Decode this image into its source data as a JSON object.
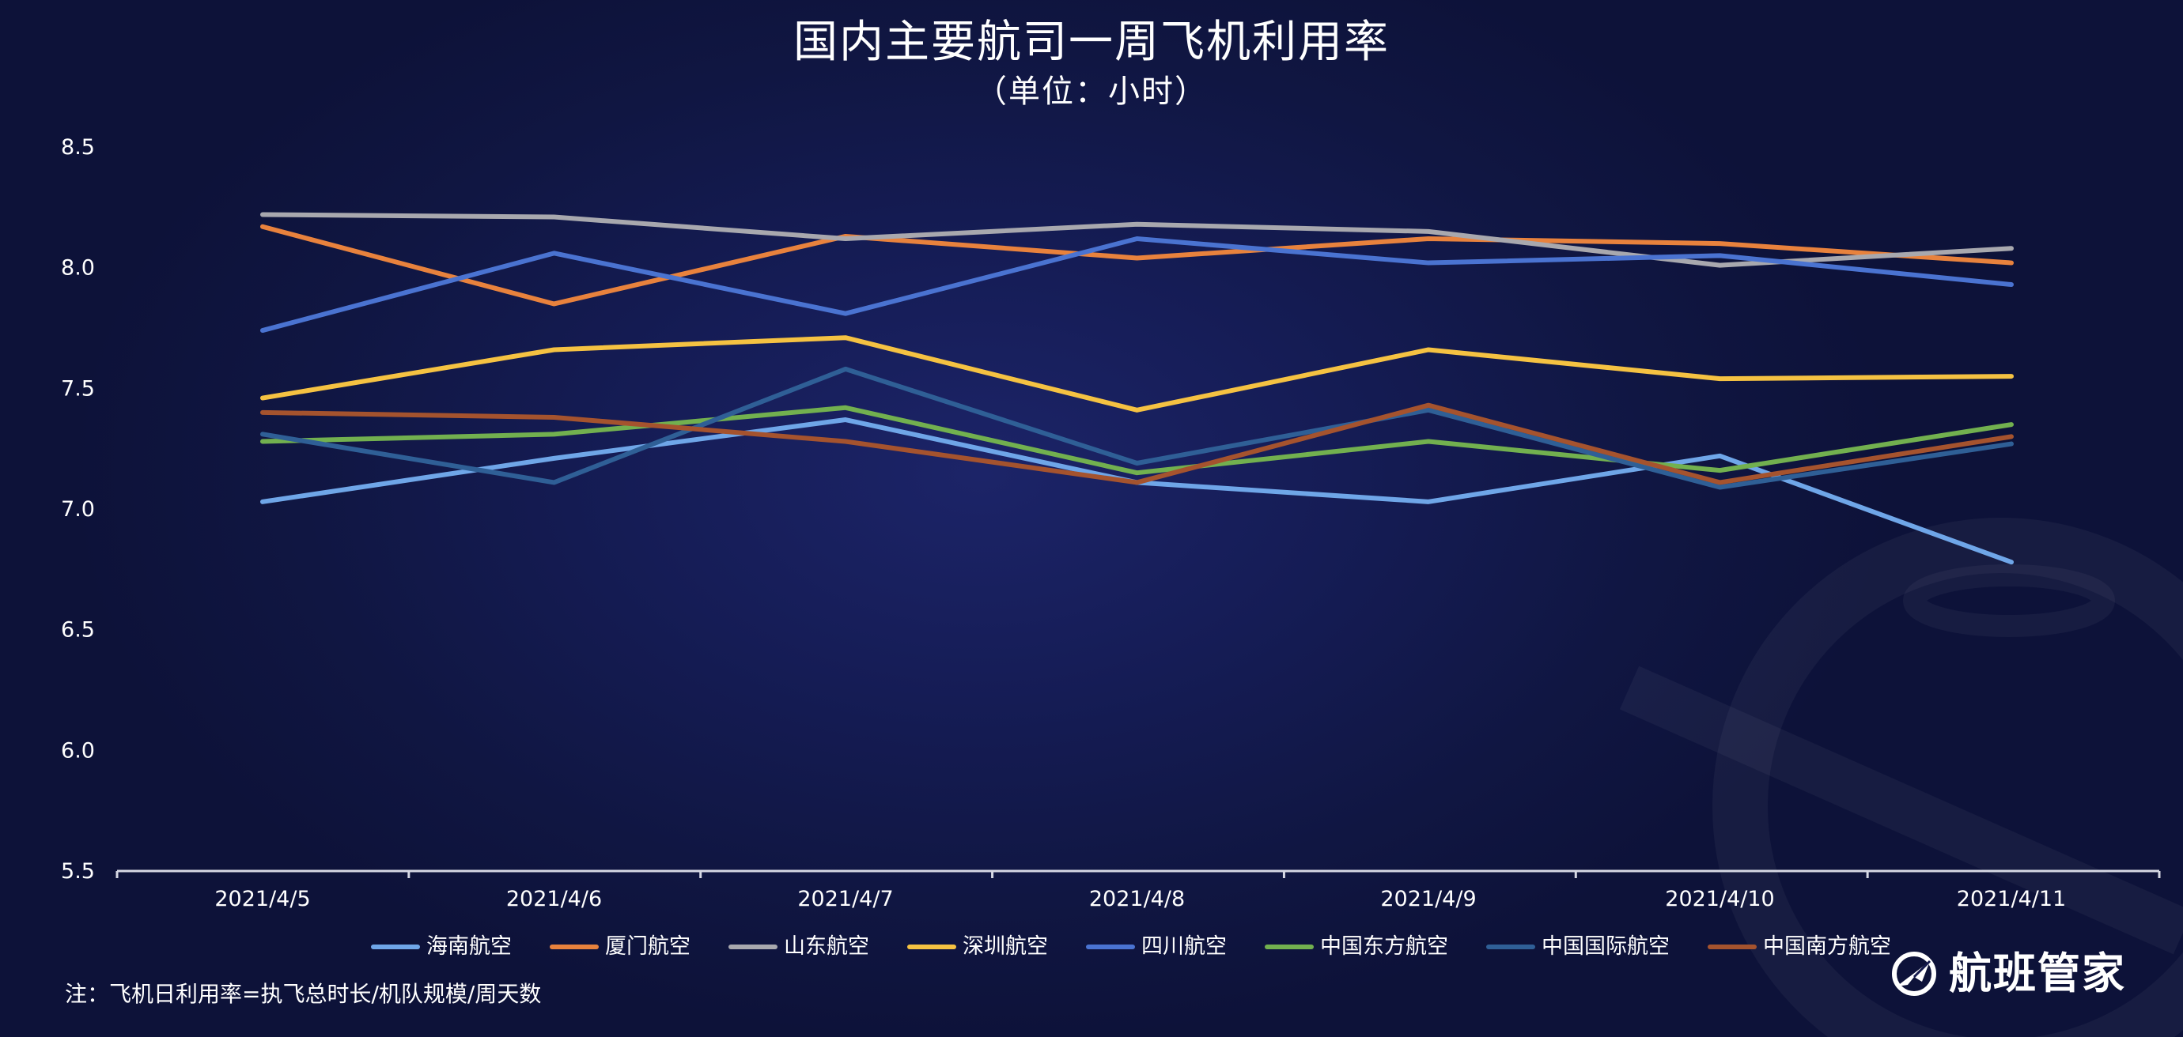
{
  "header": {
    "title": "国内主要航司一周飞机利用率",
    "subtitle": "（单位：小时）"
  },
  "note": "注：飞机日利用率=执飞总时长/机队规模/周天数",
  "brand": {
    "name": "航班管家",
    "icon": "airplane-logo-icon"
  },
  "chart_data": {
    "type": "line",
    "title": "国内主要航司一周飞机利用率",
    "subtitle": "（单位：小时）",
    "x": [
      "2021/4/5",
      "2021/4/6",
      "2021/4/7",
      "2021/4/8",
      "2021/4/9",
      "2021/4/10",
      "2021/4/11"
    ],
    "ylim": [
      5.5,
      8.5
    ],
    "yticks": [
      "5.5",
      "6.0",
      "6.5",
      "7.0",
      "7.5",
      "8.0",
      "8.5"
    ],
    "grid": false,
    "legend_position": "bottom",
    "series": [
      {
        "name": "海南航空",
        "color": "#6fa6e8",
        "values": [
          7.03,
          7.21,
          7.37,
          7.11,
          7.03,
          7.22,
          6.78
        ]
      },
      {
        "name": "厦门航空",
        "color": "#e8823d",
        "values": [
          8.17,
          7.85,
          8.13,
          8.04,
          8.12,
          8.1,
          8.02
        ]
      },
      {
        "name": "山东航空",
        "color": "#a8a8ae",
        "values": [
          8.22,
          8.21,
          8.12,
          8.18,
          8.15,
          8.01,
          8.08
        ]
      },
      {
        "name": "深圳航空",
        "color": "#f5c242",
        "values": [
          7.46,
          7.66,
          7.71,
          7.41,
          7.66,
          7.54,
          7.55
        ]
      },
      {
        "name": "四川航空",
        "color": "#4a73d1",
        "values": [
          7.74,
          8.06,
          7.81,
          8.12,
          8.02,
          8.05,
          7.93
        ]
      },
      {
        "name": "中国东方航空",
        "color": "#72b04f",
        "values": [
          7.28,
          7.31,
          7.42,
          7.15,
          7.28,
          7.16,
          7.35
        ]
      },
      {
        "name": "中国国际航空",
        "color": "#2f5f96",
        "values": [
          7.31,
          7.11,
          7.58,
          7.19,
          7.41,
          7.09,
          7.27
        ]
      },
      {
        "name": "中国南方航空",
        "color": "#a5532e",
        "values": [
          7.4,
          7.38,
          7.28,
          7.11,
          7.43,
          7.11,
          7.3
        ]
      }
    ]
  }
}
